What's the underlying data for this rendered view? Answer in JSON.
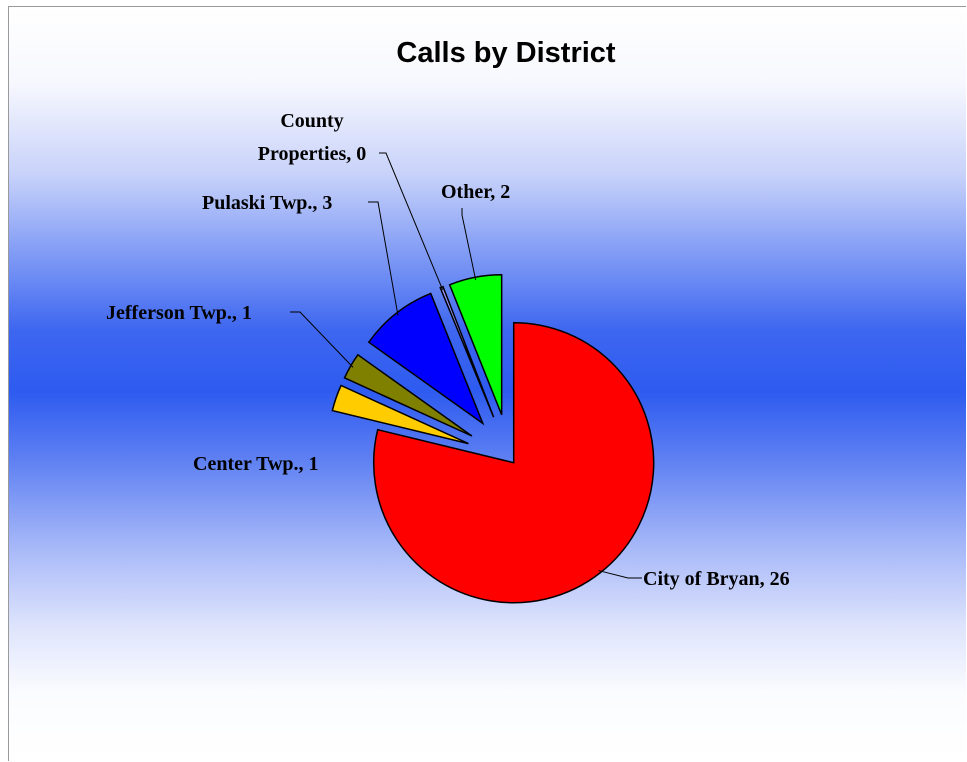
{
  "chart_data": {
    "type": "pie",
    "title": "Calls by District",
    "exploded": true,
    "slices": [
      {
        "label": "City of Bryan",
        "value": 26,
        "color": "#ff0000",
        "display": "City of Bryan, 26"
      },
      {
        "label": "Center Twp.",
        "value": 1,
        "color": "#ffcc00",
        "display": "Center Twp., 1"
      },
      {
        "label": "Jefferson Twp.",
        "value": 1,
        "color": "#808000",
        "display": "Jefferson Twp., 1"
      },
      {
        "label": "Pulaski Twp.",
        "value": 3,
        "color": "#0000ff",
        "display": "Pulaski Twp., 3"
      },
      {
        "label": "County Properties",
        "value": 0,
        "color": "#9999ff",
        "display_lines": [
          "County",
          "Properties, 0"
        ]
      },
      {
        "label": "Other",
        "value": 2,
        "color": "#00ff00",
        "display": "Other, 2"
      }
    ]
  }
}
